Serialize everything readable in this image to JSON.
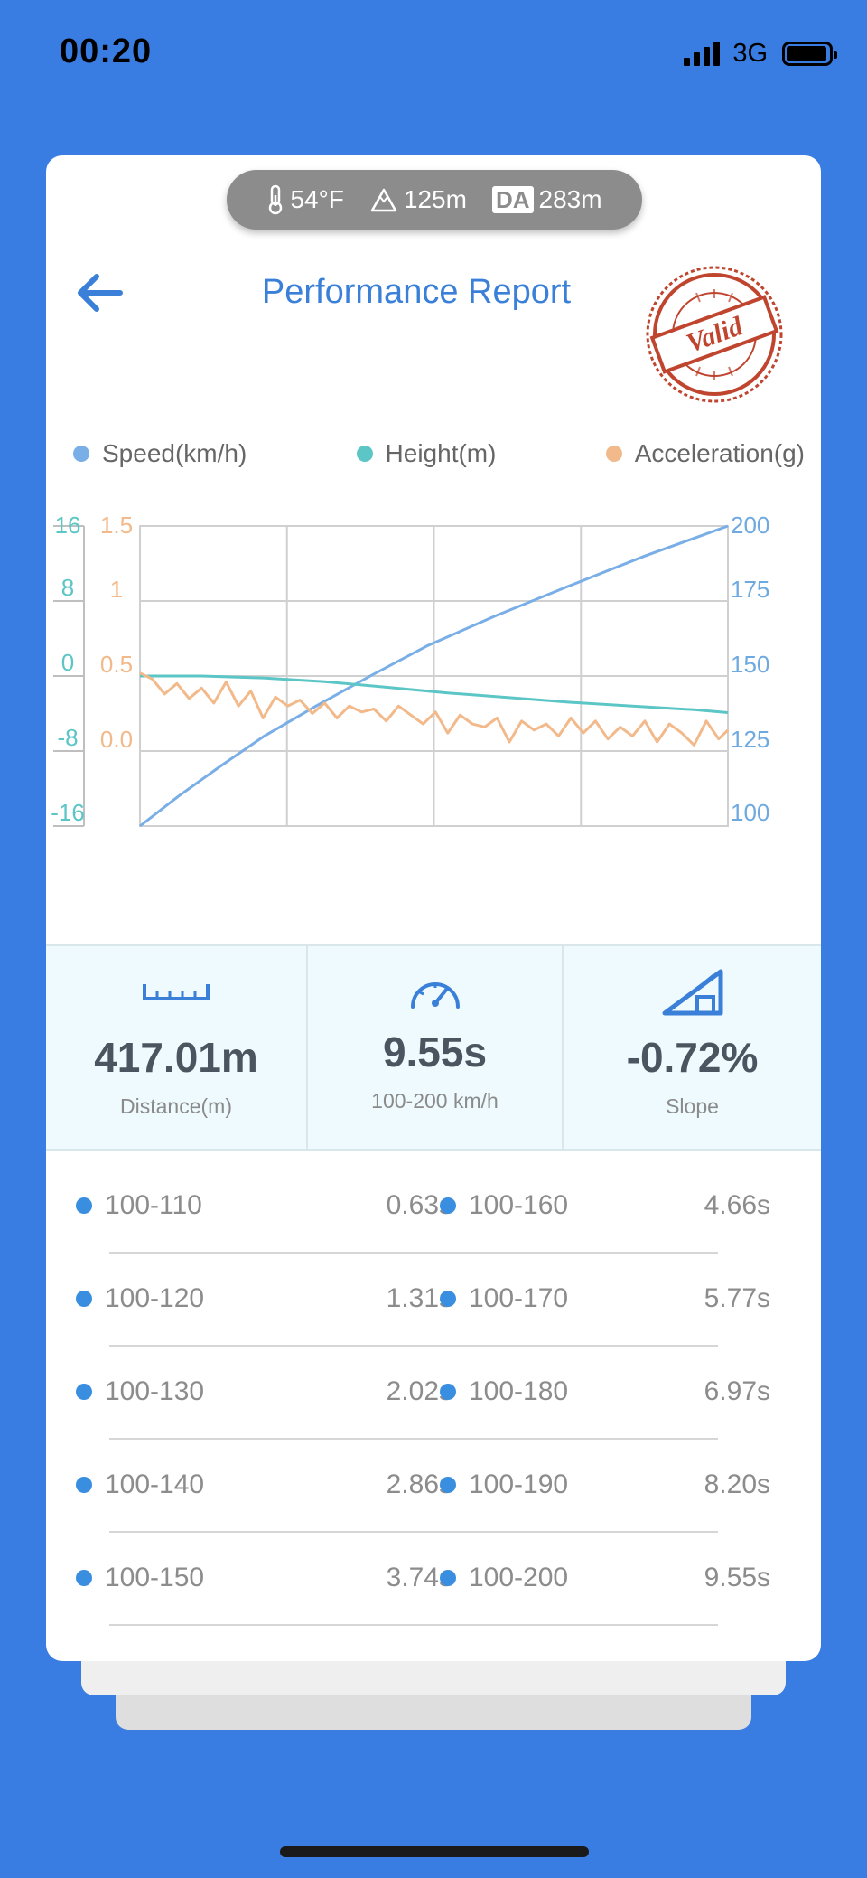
{
  "status_bar": {
    "time": "00:20",
    "network": "3G",
    "signal_bars": 4,
    "battery_level": 0.9,
    "icons": [
      "signal-icon",
      "battery-icon"
    ]
  },
  "environment": {
    "temperature": "54°F",
    "altitude": "125m",
    "density_altitude_label": "DA",
    "density_altitude": "283m",
    "icons": [
      "thermometer-icon",
      "mountain-icon"
    ]
  },
  "header": {
    "title": "Performance Report",
    "stamp_text": "Valid",
    "icons": [
      "back-arrow-icon",
      "valid-stamp-icon"
    ]
  },
  "legend": [
    {
      "label": "Speed(km/h)",
      "color": "#7aaee6"
    },
    {
      "label": "Height(m)",
      "color": "#5cc6c6"
    },
    {
      "label": "Acceleration(g)",
      "color": "#f2b98a"
    }
  ],
  "chart_data": {
    "type": "line",
    "x_range": [
      0,
      9.55
    ],
    "axes": {
      "height": {
        "ticks": [
          "16",
          "8",
          "0",
          "-8",
          "-16"
        ],
        "range": [
          -16,
          16
        ],
        "color": "#5cc6c6"
      },
      "acceleration": {
        "ticks": [
          "1.5",
          "1",
          "0.5",
          "0.0"
        ],
        "range": [
          -0.5,
          1.5
        ],
        "color": "#f2b98a"
      },
      "speed": {
        "ticks": [
          "200",
          "175",
          "150",
          "125",
          "100"
        ],
        "range": [
          100,
          200
        ],
        "color": "#6ea9e0"
      }
    },
    "grid": true,
    "series": [
      {
        "name": "Speed(km/h)",
        "axis": "speed",
        "color": "#7aaee6",
        "x": [
          0,
          0.63,
          1.31,
          2.02,
          2.86,
          3.74,
          4.66,
          5.77,
          6.97,
          8.2,
          9.55
        ],
        "y": [
          100,
          110,
          120,
          130,
          140,
          150,
          160,
          170,
          180,
          190,
          200
        ]
      },
      {
        "name": "Height(m)",
        "axis": "height",
        "color": "#5cc6c6",
        "x": [
          0,
          1,
          2,
          3,
          4,
          5,
          6,
          7,
          8,
          9,
          9.55
        ],
        "y": [
          0,
          0,
          -0.2,
          -0.6,
          -1.2,
          -1.8,
          -2.3,
          -2.8,
          -3.2,
          -3.6,
          -3.9
        ]
      },
      {
        "name": "Acceleration(g)",
        "axis": "acceleration",
        "color": "#f2b98a",
        "x": [
          0,
          0.2,
          0.4,
          0.6,
          0.8,
          1.0,
          1.2,
          1.4,
          1.6,
          1.8,
          2.0,
          2.2,
          2.4,
          2.6,
          2.8,
          3.0,
          3.2,
          3.4,
          3.6,
          3.8,
          4.0,
          4.2,
          4.4,
          4.6,
          4.8,
          5.0,
          5.2,
          5.4,
          5.6,
          5.8,
          6.0,
          6.2,
          6.4,
          6.6,
          6.8,
          7.0,
          7.2,
          7.4,
          7.6,
          7.8,
          8.0,
          8.2,
          8.4,
          8.6,
          8.8,
          9.0,
          9.2,
          9.4,
          9.55
        ],
        "y": [
          0.52,
          0.48,
          0.38,
          0.45,
          0.35,
          0.42,
          0.32,
          0.46,
          0.3,
          0.4,
          0.22,
          0.36,
          0.3,
          0.34,
          0.25,
          0.32,
          0.22,
          0.3,
          0.26,
          0.28,
          0.2,
          0.3,
          0.24,
          0.18,
          0.26,
          0.12,
          0.24,
          0.18,
          0.16,
          0.22,
          0.06,
          0.2,
          0.14,
          0.18,
          0.1,
          0.22,
          0.12,
          0.2,
          0.08,
          0.16,
          0.1,
          0.2,
          0.06,
          0.18,
          0.12,
          0.04,
          0.2,
          0.08,
          0.14
        ]
      }
    ]
  },
  "stats": [
    {
      "value": "417.01m",
      "label": "Distance(m)",
      "icon": "ruler-icon"
    },
    {
      "value": "9.55s",
      "label": "100-200 km/h",
      "icon": "speedometer-icon"
    },
    {
      "value": "-0.72%",
      "label": "Slope",
      "icon": "slope-icon"
    }
  ],
  "splits": [
    {
      "left_range": "100-110",
      "left_time": "0.63s",
      "right_range": "100-160",
      "right_time": "4.66s"
    },
    {
      "left_range": "100-120",
      "left_time": "1.31s",
      "right_range": "100-170",
      "right_time": "5.77s"
    },
    {
      "left_range": "100-130",
      "left_time": "2.02s",
      "right_range": "100-180",
      "right_time": "6.97s"
    },
    {
      "left_range": "100-140",
      "left_time": "2.86s",
      "right_range": "100-190",
      "right_time": "8.20s"
    },
    {
      "left_range": "100-150",
      "left_time": "3.74s",
      "right_range": "100-200",
      "right_time": "9.55s"
    }
  ],
  "colors": {
    "background": "#3a7de2",
    "accent": "#3a7fd8",
    "stamp": "#c0452f",
    "stats_bg": "#eefafd"
  }
}
